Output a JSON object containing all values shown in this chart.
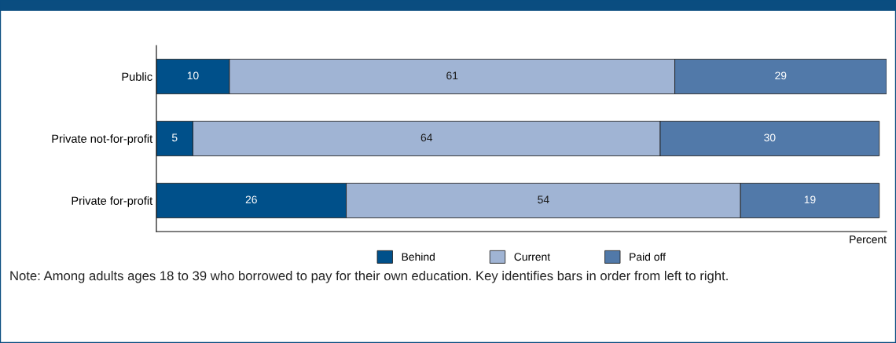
{
  "chart_data": {
    "type": "bar",
    "orientation": "horizontal",
    "stacked": true,
    "categories": [
      "Public",
      "Private not-for-profit",
      "Private for-profit"
    ],
    "series": [
      {
        "name": "Behind",
        "color": "#00508a",
        "values": [
          10,
          5,
          26
        ]
      },
      {
        "name": "Current",
        "color": "#a0b4d4",
        "values": [
          61,
          64,
          54
        ]
      },
      {
        "name": "Paid off",
        "color": "#5179a9",
        "values": [
          29,
          30,
          19
        ]
      }
    ],
    "xlabel": "Percent",
    "xlim": [
      0,
      100
    ],
    "tick_labels": "y",
    "data_labels": true,
    "legend": "bottom",
    "grid": false,
    "annotations": [
      "Note: Among adults ages 18 to 39 who borrowed to pay for their own education. Key identifies bars in order from left to right."
    ]
  }
}
